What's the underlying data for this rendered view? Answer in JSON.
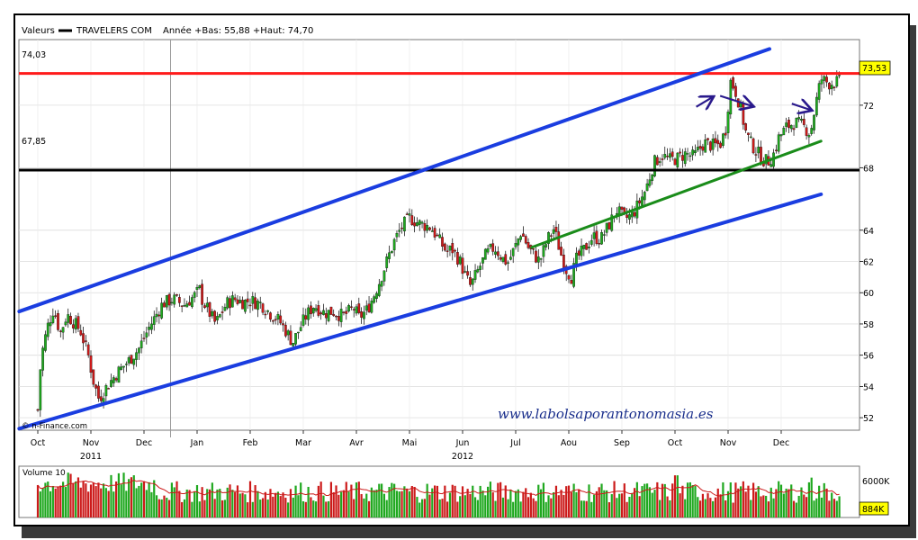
{
  "header": {
    "valeurs_label": "Valeurs",
    "ticker": "TRAVELERS COM",
    "stats": "Année +Bas: 55,88 +Haut: 74,70"
  },
  "watermark": "www.labolsaporantonomasia.es",
  "source": "© n-Finance.com",
  "price_lines": {
    "resistance": {
      "label": "74,03",
      "value": 74.03,
      "color": "#ff1a1a"
    },
    "support": {
      "label": "67,85",
      "value": 67.85,
      "color": "#000000"
    }
  },
  "last_price": {
    "label": "73,53",
    "value": 73.53,
    "bg": "#ffff00"
  },
  "volume": {
    "label": "Volume 10",
    "tick_label": "6000K",
    "last_label": "884K",
    "last_bg": "#ffff00",
    "max_k": 9000
  },
  "years": [
    {
      "label": "2011",
      "month_index": 1
    },
    {
      "label": "2012",
      "month_index": 8
    }
  ],
  "colors": {
    "up": "#1fa81f",
    "down": "#cc1a1a",
    "channel": "#1a3de0",
    "trend": "#1a8c1a",
    "arrow": "#2a1a8c",
    "ma": "#cc1a1a"
  },
  "chart_data": {
    "type": "candlestick",
    "title": "TRAVELERS COM",
    "x_months": [
      "Oct",
      "Nov",
      "Dec",
      "Jan",
      "Feb",
      "Mar",
      "Avr",
      "Mai",
      "Jun",
      "Jul",
      "Aou",
      "Sep",
      "Oct",
      "Nov",
      "Dec"
    ],
    "y_ticks": [
      52,
      54,
      56,
      58,
      60,
      62,
      64,
      68,
      72
    ],
    "ylim": [
      51.2,
      76.2
    ],
    "close_path": [
      [
        0,
        52.5
      ],
      [
        0.06,
        55.8
      ],
      [
        0.18,
        57.8
      ],
      [
        0.3,
        59.0
      ],
      [
        0.42,
        57.4
      ],
      [
        0.55,
        58.6
      ],
      [
        0.8,
        57.6
      ],
      [
        0.95,
        56.0
      ],
      [
        1.05,
        54.3
      ],
      [
        1.15,
        53.2
      ],
      [
        1.3,
        54.0
      ],
      [
        1.5,
        54.9
      ],
      [
        1.7,
        55.6
      ],
      [
        1.9,
        56.4
      ],
      [
        2.1,
        57.8
      ],
      [
        2.35,
        59.3
      ],
      [
        2.55,
        59.6
      ],
      [
        2.75,
        59.2
      ],
      [
        2.95,
        59.8
      ],
      [
        3.05,
        60.2
      ],
      [
        3.1,
        59.5
      ],
      [
        3.2,
        58.9
      ],
      [
        3.35,
        58.0
      ],
      [
        3.55,
        59.3
      ],
      [
        3.7,
        59.6
      ],
      [
        3.85,
        59.4
      ],
      [
        4.0,
        59.5
      ],
      [
        4.2,
        59.3
      ],
      [
        4.4,
        58.6
      ],
      [
        4.55,
        58.2
      ],
      [
        4.7,
        57.4
      ],
      [
        4.8,
        56.8
      ],
      [
        4.9,
        57.5
      ],
      [
        5.05,
        58.5
      ],
      [
        5.2,
        59.2
      ],
      [
        5.4,
        58.7
      ],
      [
        5.55,
        58.8
      ],
      [
        5.75,
        58.5
      ],
      [
        5.95,
        59.0
      ],
      [
        6.05,
        58.4
      ],
      [
        6.2,
        58.9
      ],
      [
        6.3,
        59.6
      ],
      [
        6.42,
        60.6
      ],
      [
        6.55,
        61.8
      ],
      [
        6.7,
        63.2
      ],
      [
        6.85,
        64.2
      ],
      [
        7.0,
        64.8
      ],
      [
        7.2,
        64.4
      ],
      [
        7.4,
        64.2
      ],
      [
        7.55,
        63.4
      ],
      [
        7.7,
        62.6
      ],
      [
        7.8,
        62.8
      ],
      [
        7.95,
        62.0
      ],
      [
        8.05,
        61.1
      ],
      [
        8.15,
        60.4
      ],
      [
        8.3,
        61.5
      ],
      [
        8.45,
        62.5
      ],
      [
        8.6,
        62.9
      ],
      [
        8.75,
        62.2
      ],
      [
        8.85,
        61.9
      ],
      [
        9.0,
        63.0
      ],
      [
        9.1,
        63.9
      ],
      [
        9.25,
        62.8
      ],
      [
        9.45,
        62.0
      ],
      [
        9.6,
        63.4
      ],
      [
        9.72,
        64.1
      ],
      [
        9.85,
        62.5
      ],
      [
        9.95,
        61.5
      ],
      [
        10.05,
        61.0
      ],
      [
        10.15,
        62.2
      ],
      [
        10.3,
        62.8
      ],
      [
        10.45,
        63.6
      ],
      [
        10.6,
        63.4
      ],
      [
        10.75,
        64.3
      ],
      [
        10.9,
        65.3
      ],
      [
        11.05,
        64.7
      ],
      [
        11.2,
        65.0
      ],
      [
        11.3,
        65.6
      ],
      [
        11.45,
        66.6
      ],
      [
        11.6,
        68.3
      ],
      [
        11.75,
        68.8
      ],
      [
        11.9,
        68.5
      ],
      [
        12.05,
        68.6
      ],
      [
        12.2,
        68.9
      ],
      [
        12.35,
        68.7
      ],
      [
        12.55,
        69.6
      ],
      [
        12.7,
        69.4
      ],
      [
        12.85,
        69.5
      ],
      [
        12.95,
        70.4
      ],
      [
        13.05,
        73.6
      ],
      [
        13.15,
        72.8
      ],
      [
        13.25,
        71.6
      ],
      [
        13.32,
        70.4
      ],
      [
        13.42,
        69.6
      ],
      [
        13.55,
        69.0
      ],
      [
        13.65,
        68.5
      ],
      [
        13.75,
        68.4
      ],
      [
        13.85,
        68.8
      ],
      [
        13.95,
        69.9
      ],
      [
        14.1,
        70.6
      ],
      [
        14.25,
        70.9
      ],
      [
        14.4,
        70.7
      ],
      [
        14.55,
        70.2
      ],
      [
        14.65,
        72.1
      ],
      [
        14.75,
        73.7
      ],
      [
        14.9,
        73.4
      ],
      [
        15.1,
        73.5
      ]
    ],
    "volume_spikes": [
      {
        "month": 12.02,
        "value_k": 7400
      },
      {
        "month": 14.58,
        "value_k": 7000
      }
    ],
    "annotations": {
      "upper_channel": [
        [
          -0.35,
          58.8
        ],
        [
          13.78,
          75.6
        ]
      ],
      "lower_channel": [
        [
          -0.35,
          51.3
        ],
        [
          14.75,
          66.3
        ]
      ],
      "green_trend": [
        [
          9.3,
          62.9
        ],
        [
          14.75,
          69.7
        ]
      ],
      "arrows": [
        {
          "from": [
            12.4,
            71.9
          ],
          "to": [
            12.7,
            72.5
          ]
        },
        {
          "from": [
            12.85,
            72.6
          ],
          "to": [
            13.45,
            71.95
          ]
        },
        {
          "from": [
            14.2,
            72.1
          ],
          "to": [
            14.55,
            71.7
          ]
        },
        {
          "from": [
            12.35,
            6200
          ],
          "to": [
            12.05,
            7800
          ],
          "pane": "volume"
        },
        {
          "from": [
            14.7,
            7600
          ],
          "to": [
            14.4,
            6000
          ],
          "pane": "volume"
        }
      ]
    }
  }
}
